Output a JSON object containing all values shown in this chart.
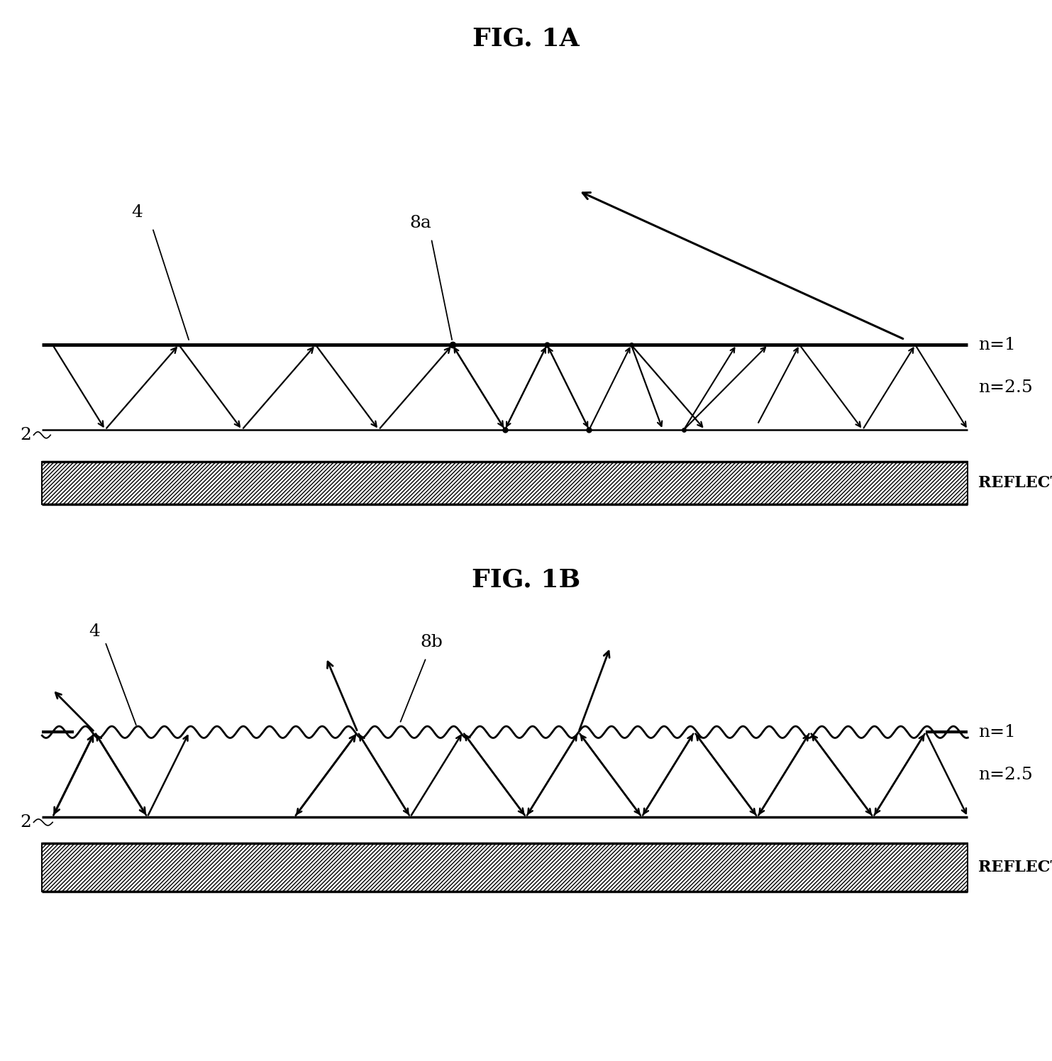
{
  "fig_title_1a": "FIG. 1A",
  "fig_title_1b": "FIG. 1B",
  "label_n1": "n=1",
  "label_n25": "n=2.5",
  "label_reflector": "REFLECTOR",
  "label_4": "4",
  "label_8a": "8a",
  "label_8b": "8b",
  "label_2": "2",
  "bg_color": "#ffffff",
  "line_color": "#000000",
  "title_fontsize": 26,
  "label_fontsize": 18
}
